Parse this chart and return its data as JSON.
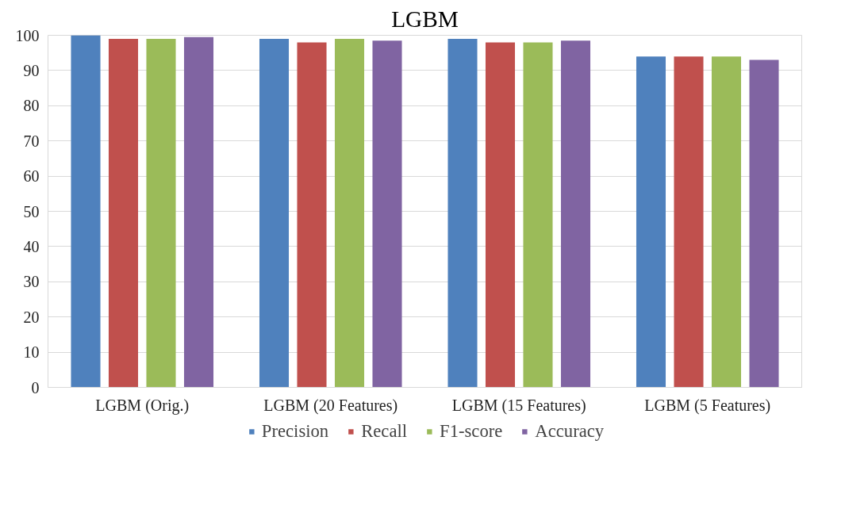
{
  "chart_data": {
    "type": "bar",
    "title": "LGBM",
    "categories": [
      "LGBM (Orig.)",
      "LGBM (20 Features)",
      "LGBM (15 Features)",
      "LGBM (5 Features)"
    ],
    "series": [
      {
        "name": "Precision",
        "color": "#4f81bd",
        "values": [
          100,
          99,
          99,
          94
        ]
      },
      {
        "name": "Recall",
        "color": "#c0504d",
        "values": [
          99,
          98,
          98,
          94
        ]
      },
      {
        "name": "F1-score",
        "color": "#9bbb59",
        "values": [
          99,
          99,
          98,
          94
        ]
      },
      {
        "name": "Accuracy",
        "color": "#8064a2",
        "values": [
          99.5,
          98.5,
          98.5,
          93
        ]
      }
    ],
    "ylim": [
      0,
      100
    ],
    "yticks": [
      0,
      10,
      20,
      30,
      40,
      50,
      60,
      70,
      80,
      90,
      100
    ],
    "grid": "y",
    "legend": "bottom"
  }
}
